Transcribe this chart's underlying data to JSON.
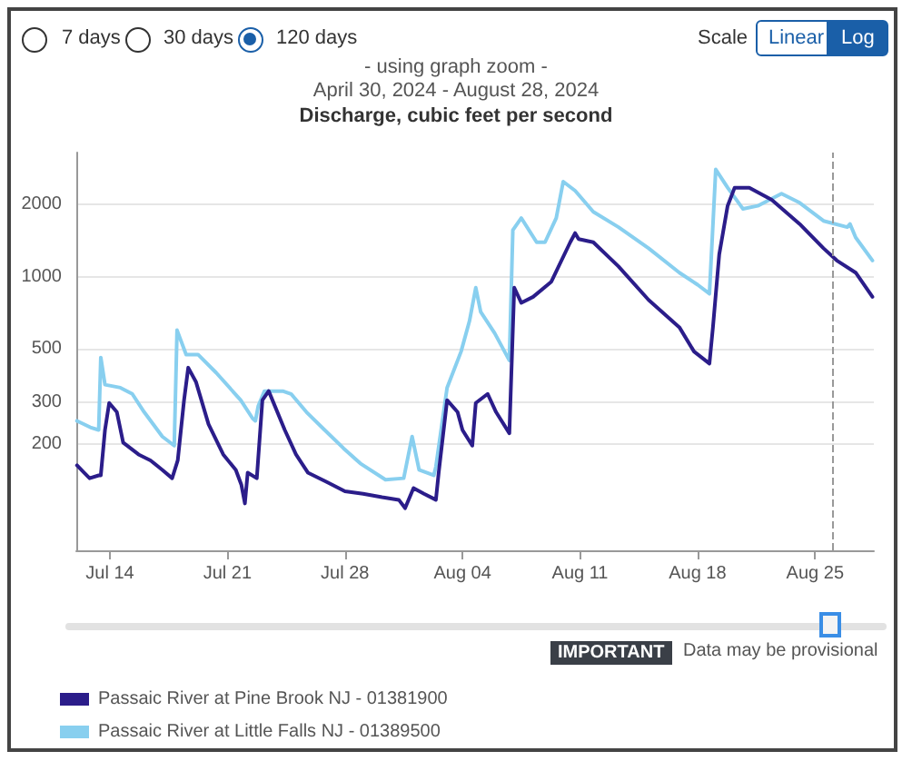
{
  "chart_data": {
    "type": "line",
    "title": "Discharge, cubic feet per second",
    "subtitle": "April 30, 2024 - August 28, 2024",
    "annotations": [
      "7 days",
      "30 days",
      "120 days",
      "Scale",
      "Linear",
      "Log",
      "- using graph zoom -",
      "IMPORTANT",
      "Data may be provisional"
    ],
    "log": "y",
    "grid": "y",
    "legend": "bottom",
    "marker": "none",
    "line_style": "solid",
    "xlim": [
      "2024-07-12T00:00",
      "2024-08-28T12:00"
    ],
    "xticks": [
      {
        "value": "2024-07-14",
        "label": "Jul 14"
      },
      {
        "value": "2024-07-21",
        "label": "Jul 21"
      },
      {
        "value": "2024-07-28",
        "label": "Jul 28"
      },
      {
        "value": "2024-08-04",
        "label": "Aug 04"
      },
      {
        "value": "2024-08-11",
        "label": "Aug 11"
      },
      {
        "value": "2024-08-18",
        "label": "Aug 18"
      },
      {
        "value": "2024-08-25",
        "label": "Aug 25"
      }
    ],
    "ylim": [
      72,
      3300
    ],
    "yticks": [
      200,
      300,
      500,
      1000,
      2000
    ],
    "ref_lines": [
      {
        "axis": "x",
        "value": "2024-08-26",
        "color": "#999999",
        "line_style": "dashed"
      }
    ],
    "series": [
      {
        "name": "Passaic River at Little Falls NJ - 01389500",
        "color": "#88cfef",
        "x": [
          "2024-07-12T01:00",
          "2024-07-12T20:00",
          "2024-07-13T08:00",
          "2024-07-13T11:00",
          "2024-07-13T17:00",
          "2024-07-14T15:00",
          "2024-07-15T08:00",
          "2024-07-16T01:00",
          "2024-07-17T03:00",
          "2024-07-17T20:00",
          "2024-07-18T00:00",
          "2024-07-18T13:00",
          "2024-07-19T06:00",
          "2024-07-20T08:00",
          "2024-07-21T19:00",
          "2024-07-22T12:00",
          "2024-07-22T16:00",
          "2024-07-22T20:00",
          "2024-07-23T05:00",
          "2024-07-24T07:00",
          "2024-07-24T19:00",
          "2024-07-25T17:00",
          "2024-07-26T19:00",
          "2024-07-27T22:00",
          "2024-07-28T22:00",
          "2024-07-30T10:00",
          "2024-07-31T12:00",
          "2024-08-01T00:00",
          "2024-08-01T10:00",
          "2024-08-02T07:00",
          "2024-08-02T10:00",
          "2024-08-03T02:00",
          "2024-08-03T22:00",
          "2024-08-04T10:00",
          "2024-08-04T19:00",
          "2024-08-05T02:00",
          "2024-08-05T22:00",
          "2024-08-06T19:00",
          "2024-08-07T00:00",
          "2024-08-07T12:00",
          "2024-08-08T10:00",
          "2024-08-08T22:00",
          "2024-08-09T14:00",
          "2024-08-10T00:00",
          "2024-08-10T17:00",
          "2024-08-11T19:00",
          "2024-08-13T07:00",
          "2024-08-15T02:00",
          "2024-08-16T22:00",
          "2024-08-18T00:00",
          "2024-08-18T17:00",
          "2024-08-19T02:00",
          "2024-08-19T19:00",
          "2024-08-20T17:00",
          "2024-08-21T14:00",
          "2024-08-23T00:00",
          "2024-08-24T02:00",
          "2024-08-25T12:00",
          "2024-08-26T22:00",
          "2024-08-27T02:00",
          "2024-08-27T10:00",
          "2024-08-28T10:00"
        ],
        "values": [
          250,
          235,
          229,
          460,
          354,
          344,
          324,
          272,
          215,
          197,
          598,
          473,
          473,
          397,
          305,
          256,
          250,
          288,
          333,
          333,
          324,
          272,
          229,
          192,
          166,
          142,
          144,
          215,
          156,
          148,
          161,
          344,
          487,
          653,
          900,
          713,
          581,
          447,
          1567,
          1759,
          1393,
          1393,
          1759,
          2496,
          2287,
          1866,
          1611,
          1315,
          1040,
          926,
          849,
          2806,
          2355,
          1919,
          1977,
          2223,
          2036,
          1711,
          1611,
          1660,
          1459,
          1169
        ]
      },
      {
        "name": "Passaic River at Pine Brook NJ - 01381900",
        "color": "#2b1d8a",
        "x": [
          "2024-07-12T01:00",
          "2024-07-12T11:00",
          "2024-07-12T19:00",
          "2024-07-13T08:00",
          "2024-07-13T11:00",
          "2024-07-13T17:00",
          "2024-07-13T23:00",
          "2024-07-14T10:00",
          "2024-07-14T19:00",
          "2024-07-15T17:00",
          "2024-07-16T10:00",
          "2024-07-17T03:00",
          "2024-07-17T17:00",
          "2024-07-18T01:00",
          "2024-07-18T10:00",
          "2024-07-18T16:00",
          "2024-07-19T03:00",
          "2024-07-19T21:00",
          "2024-07-20T18:00",
          "2024-07-21T12:00",
          "2024-07-21T20:00",
          "2024-07-22T01:00",
          "2024-07-22T05:00",
          "2024-07-22T18:00",
          "2024-07-23T02:00",
          "2024-07-23T11:00",
          "2024-07-24T10:00",
          "2024-07-25T02:00",
          "2024-07-25T19:00",
          "2024-07-26T22:00",
          "2024-07-28T00:00",
          "2024-07-29T02:00",
          "2024-07-30T05:00",
          "2024-07-31T05:00",
          "2024-07-31T14:00",
          "2024-08-01T02:00",
          "2024-08-01T17:00",
          "2024-08-02T10:00",
          "2024-08-02T14:00",
          "2024-08-03T02:00",
          "2024-08-03T17:00",
          "2024-08-04T00:00",
          "2024-08-04T14:00",
          "2024-08-04T19:00",
          "2024-08-05T12:00",
          "2024-08-06T00:00",
          "2024-08-06T19:00",
          "2024-08-07T02:00",
          "2024-08-07T12:00",
          "2024-08-08T05:00",
          "2024-08-09T07:00",
          "2024-08-10T10:00",
          "2024-08-10T17:00",
          "2024-08-10T22:00",
          "2024-08-11T19:00",
          "2024-08-13T07:00",
          "2024-08-15T02:00",
          "2024-08-16T22:00",
          "2024-08-17T19:00",
          "2024-08-18T17:00",
          "2024-08-18T22:00",
          "2024-08-19T07:00",
          "2024-08-19T19:00",
          "2024-08-20T05:00",
          "2024-08-21T02:00",
          "2024-08-22T10:00",
          "2024-08-24T02:00",
          "2024-08-25T12:00",
          "2024-08-26T07:00",
          "2024-08-27T10:00",
          "2024-08-28T10:00"
        ],
        "values": [
          163,
          152,
          144,
          148,
          148,
          229,
          297,
          272,
          203,
          181,
          171,
          156,
          144,
          171,
          305,
          417,
          364,
          242,
          181,
          156,
          135,
          113,
          152,
          144,
          305,
          333,
          229,
          181,
          152,
          139,
          127,
          124,
          120,
          117,
          108,
          131,
          124,
          117,
          152,
          305,
          272,
          229,
          197,
          297,
          324,
          272,
          222,
          900,
          778,
          824,
          953,
          1393,
          1521,
          1436,
          1393,
          1104,
          800,
          615,
          487,
          434,
          615,
          1239,
          1977,
          2355,
          2355,
          2094,
          1660,
          1315,
          1169,
          1040,
          824
        ]
      }
    ]
  }
}
